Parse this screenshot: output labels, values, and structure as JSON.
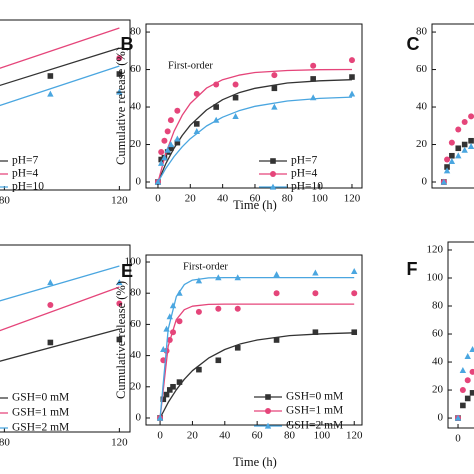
{
  "chart_data": [
    {
      "type": "scatter",
      "x": [
        96,
        120
      ],
      "fit_x": [
        0,
        120
      ],
      "series": [
        {
          "name": "pH=7",
          "color": "#333333",
          "marker": "square",
          "values": [
            54,
            55
          ],
          "fit": [
            14,
            68
          ]
        },
        {
          "name": "pH=4",
          "color": "#e5457a",
          "marker": "circle",
          "values": [
            null,
            63
          ],
          "fit": [
            20,
            78
          ]
        },
        {
          "name": "pH=10",
          "color": "#4aa6e0",
          "marker": "triangle",
          "values": [
            45,
            46
          ],
          "fit": [
            2,
            59
          ]
        }
      ],
      "xlim": [
        -5,
        123.7
      ],
      "ylim": [
        -3,
        82
      ],
      "xticks": [
        80,
        120
      ]
    },
    {
      "type": "scatter",
      "panel": "B",
      "annotation": "First-order",
      "xlabel": "Time (h)",
      "ylabel": "Cumulative release (%)",
      "x": [
        0,
        2,
        4,
        6,
        8,
        12,
        24,
        36,
        48,
        72,
        96,
        120
      ],
      "fit_x": [
        0,
        5,
        10,
        15,
        20,
        30,
        40,
        50,
        60,
        80,
        100,
        120
      ],
      "series": [
        {
          "name": "pH=7",
          "color": "#333333",
          "marker": "square",
          "values": [
            0,
            12,
            13,
            16,
            18,
            21,
            31,
            40,
            45,
            50,
            55,
            56
          ],
          "fit": [
            0,
            10.0,
            18.1,
            24.8,
            30.3,
            38.4,
            43.9,
            47.6,
            50.0,
            52.8,
            54.0,
            54.6
          ]
        },
        {
          "name": "pH=4",
          "color": "#e5457a",
          "marker": "circle",
          "values": [
            0,
            16,
            22,
            27,
            33,
            38,
            47,
            52,
            52,
            57,
            62,
            65
          ],
          "fit": [
            0,
            15.6,
            27.1,
            35.6,
            41.9,
            50.1,
            54.6,
            57.0,
            58.4,
            59.5,
            59.9,
            60.0
          ]
        },
        {
          "name": "pH=10",
          "color": "#4aa6e0",
          "marker": "triangle",
          "values": [
            0,
            10,
            13,
            17,
            20,
            23,
            27,
            33,
            35,
            40,
            45,
            47
          ],
          "fit": [
            0,
            7.4,
            13.6,
            18.8,
            23.1,
            29.9,
            34.6,
            38.0,
            40.4,
            43.2,
            44.6,
            45.3
          ]
        }
      ],
      "xlim": [
        -7.4,
        126.2
      ],
      "ylim": [
        -3.2,
        84.3
      ],
      "xticks": [
        0,
        20,
        40,
        60,
        80,
        100,
        120
      ],
      "yticks": [
        0,
        20,
        40,
        60,
        80
      ]
    },
    {
      "type": "scatter",
      "panel": "C",
      "x": [
        0,
        2,
        5,
        9,
        13,
        17
      ],
      "series": [
        {
          "color": "#333333",
          "marker": "square",
          "values": [
            0,
            8,
            14,
            18,
            20,
            22
          ]
        },
        {
          "color": "#e5457a",
          "marker": "circle",
          "values": [
            0,
            12,
            21,
            28,
            32,
            35
          ]
        },
        {
          "color": "#4aa6e0",
          "marker": "triangle",
          "values": [
            0,
            6,
            11,
            14,
            17,
            19
          ]
        }
      ],
      "xlim": [
        -7.4,
        126.2
      ],
      "ylim": [
        -3.2,
        84.3
      ],
      "yticks": [
        0,
        20,
        40,
        60,
        80
      ]
    },
    {
      "type": "scatter",
      "x": [
        96,
        120
      ],
      "fit_x": [
        0,
        120
      ],
      "series": [
        {
          "name": "GSH=0 mM",
          "color": "#333333",
          "marker": "square",
          "values": [
            53,
            55
          ],
          "fit": [
            0,
            62
          ]
        },
        {
          "name": "GSH=1 mM",
          "color": "#e5457a",
          "marker": "circle",
          "values": [
            78,
            79
          ],
          "fit": [
            6,
            90
          ]
        },
        {
          "name": "GSH=2 mM",
          "color": "#4aa6e0",
          "marker": "triangle",
          "values": [
            93,
            93
          ],
          "fit": [
            37,
            104
          ]
        }
      ],
      "xlim": [
        -5,
        123.7
      ],
      "ylim": [
        -6.7,
        118
      ],
      "xticks": [
        80,
        120
      ]
    },
    {
      "type": "scatter",
      "panel": "E",
      "annotation": "First-order",
      "xlabel": "Time (h)",
      "ylabel": "Cumulative release (%)",
      "x": [
        0,
        2,
        4,
        6,
        8,
        12,
        24,
        36,
        48,
        72,
        96,
        120
      ],
      "fit_x": [
        0,
        5,
        10,
        15,
        20,
        30,
        40,
        50,
        60,
        80,
        100,
        120
      ],
      "series": [
        {
          "name": "GSH=0 mM",
          "color": "#333333",
          "marker": "square",
          "values": [
            0,
            12,
            15,
            18,
            20,
            23,
            31,
            37,
            45,
            50,
            55,
            55
          ],
          "fit": [
            0,
            10.0,
            18.1,
            24.8,
            30.3,
            38.4,
            43.9,
            47.6,
            50.0,
            52.8,
            54.0,
            54.6
          ]
        },
        {
          "name": "GSH=1 mM",
          "color": "#e5457a",
          "marker": "circle",
          "values": [
            0,
            37,
            43,
            50,
            55,
            62,
            68,
            70,
            70,
            80,
            80,
            80
          ],
          "fit": [
            0,
            46.1,
            63.1,
            69.4,
            71.7,
            72.8,
            73,
            73,
            73,
            73,
            73,
            73
          ]
        },
        {
          "name": "GSH=2 mM",
          "color": "#4aa6e0",
          "marker": "triangle",
          "values": [
            0,
            44,
            57,
            65,
            72,
            80,
            88,
            90,
            90,
            92,
            93,
            94
          ],
          "fit": [
            0,
            56.9,
            77.8,
            85.5,
            88.4,
            89.8,
            90,
            90,
            90,
            90,
            90,
            90
          ]
        }
      ],
      "xlim": [
        -8.7,
        124.8
      ],
      "ylim": [
        -4.5,
        104.5
      ],
      "xticks": [
        0,
        20,
        40,
        60,
        80,
        100,
        120
      ],
      "yticks": [
        0,
        20,
        40,
        60,
        80,
        100
      ]
    },
    {
      "type": "scatter",
      "panel": "F",
      "x": [
        0,
        3,
        6,
        9
      ],
      "series": [
        {
          "color": "#333333",
          "marker": "square",
          "values": [
            0,
            9,
            14,
            18
          ]
        },
        {
          "color": "#e5457a",
          "marker": "circle",
          "values": [
            0,
            20,
            27,
            33
          ]
        },
        {
          "color": "#4aa6e0",
          "marker": "triangle",
          "values": [
            0,
            34,
            44,
            49
          ]
        }
      ],
      "xlim": [
        -6.2,
        126.2
      ],
      "ylim": [
        -7.1,
        125.7
      ],
      "xticks": [
        0
      ],
      "yticks": [
        0,
        20,
        40,
        60,
        80,
        100,
        120
      ]
    }
  ]
}
